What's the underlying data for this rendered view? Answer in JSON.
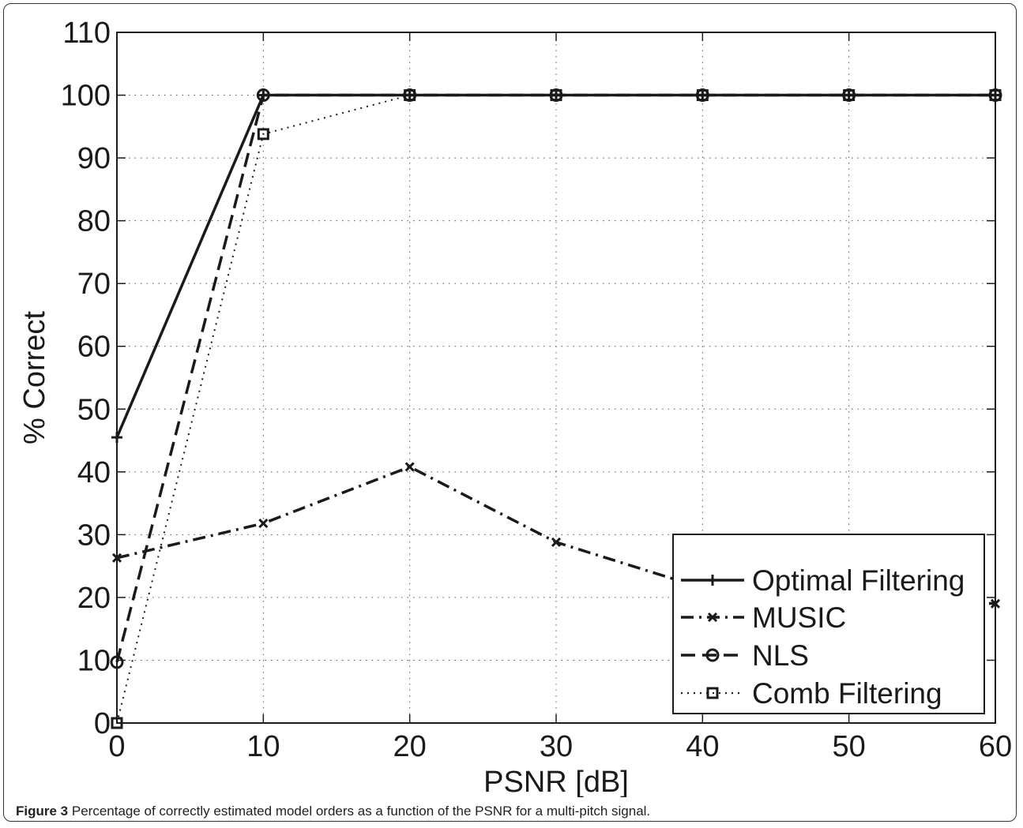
{
  "caption": {
    "label": "Figure 3",
    "text": "Percentage of correctly estimated model orders as a function of the PSNR for a multi-pitch signal."
  },
  "chart_data": {
    "type": "line",
    "title": "",
    "xlabel": "PSNR [dB]",
    "ylabel": "% Correct",
    "xlim": [
      0,
      60
    ],
    "ylim": [
      0,
      110
    ],
    "xticks": [
      0,
      10,
      20,
      30,
      40,
      50,
      60
    ],
    "yticks": [
      0,
      10,
      20,
      30,
      40,
      50,
      60,
      70,
      80,
      90,
      100,
      110
    ],
    "grid": true,
    "legend_position": "bottom-right",
    "x": [
      0,
      10,
      20,
      30,
      40,
      50,
      60
    ],
    "series": [
      {
        "name": "Optimal Filtering",
        "style": "solid",
        "marker": "plus",
        "color": "#1a1a1a",
        "values": [
          45.5,
          100,
          100,
          100,
          100,
          100,
          100
        ]
      },
      {
        "name": "MUSIC",
        "style": "dashdot",
        "marker": "x",
        "color": "#1a1a1a",
        "values": [
          26.3,
          31.8,
          40.8,
          28.8,
          21.5,
          20.5,
          19
        ]
      },
      {
        "name": "NLS",
        "style": "dashed",
        "marker": "circle",
        "color": "#1a1a1a",
        "values": [
          9.7,
          100,
          100,
          100,
          100,
          100,
          100
        ]
      },
      {
        "name": "Comb Filtering",
        "style": "dotted",
        "marker": "square",
        "color": "#1a1a1a",
        "values": [
          0,
          93.8,
          100,
          100,
          100,
          100,
          100
        ]
      }
    ]
  }
}
